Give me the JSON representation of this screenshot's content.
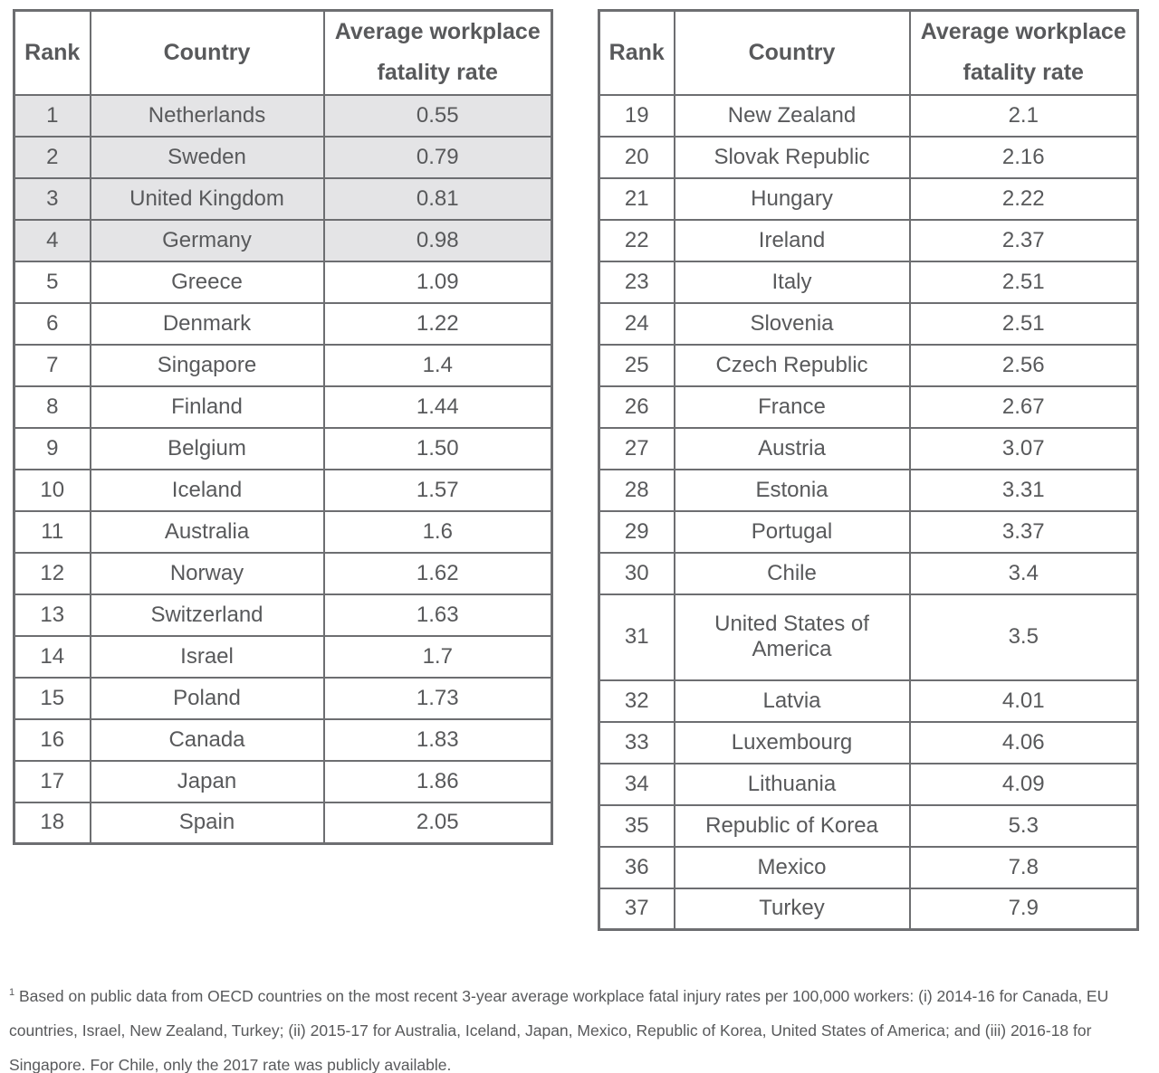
{
  "colors": {
    "border": "#6d6e71",
    "shaded_row_bg": "#e4e4e6",
    "text": "#58595b",
    "page_bg": "#ffffff"
  },
  "tables": [
    {
      "headers": {
        "rank": "Rank",
        "country": "Country",
        "rate": "Average workplace fatality rate"
      },
      "rows": [
        {
          "rank": "1",
          "country": "Netherlands",
          "rate": "0.55",
          "shaded": true
        },
        {
          "rank": "2",
          "country": "Sweden",
          "rate": "0.79",
          "shaded": true
        },
        {
          "rank": "3",
          "country": "United Kingdom",
          "rate": "0.81",
          "shaded": true
        },
        {
          "rank": "4",
          "country": "Germany",
          "rate": "0.98",
          "shaded": true
        },
        {
          "rank": "5",
          "country": "Greece",
          "rate": "1.09",
          "shaded": false
        },
        {
          "rank": "6",
          "country": "Denmark",
          "rate": "1.22",
          "shaded": false
        },
        {
          "rank": "7",
          "country": "Singapore",
          "rate": "1.4",
          "shaded": false
        },
        {
          "rank": "8",
          "country": "Finland",
          "rate": "1.44",
          "shaded": false
        },
        {
          "rank": "9",
          "country": "Belgium",
          "rate": "1.50",
          "shaded": false
        },
        {
          "rank": "10",
          "country": "Iceland",
          "rate": "1.57",
          "shaded": false
        },
        {
          "rank": "11",
          "country": "Australia",
          "rate": "1.6",
          "shaded": false
        },
        {
          "rank": "12",
          "country": "Norway",
          "rate": "1.62",
          "shaded": false
        },
        {
          "rank": "13",
          "country": "Switzerland",
          "rate": "1.63",
          "shaded": false
        },
        {
          "rank": "14",
          "country": "Israel",
          "rate": "1.7",
          "shaded": false
        },
        {
          "rank": "15",
          "country": "Poland",
          "rate": "1.73",
          "shaded": false
        },
        {
          "rank": "16",
          "country": "Canada",
          "rate": "1.83",
          "shaded": false
        },
        {
          "rank": "17",
          "country": "Japan",
          "rate": "1.86",
          "shaded": false
        },
        {
          "rank": "18",
          "country": "Spain",
          "rate": "2.05",
          "shaded": false
        }
      ]
    },
    {
      "headers": {
        "rank": "Rank",
        "country": "Country",
        "rate": "Average workplace fatality rate"
      },
      "rows": [
        {
          "rank": "19",
          "country": "New Zealand",
          "rate": "2.1",
          "shaded": false
        },
        {
          "rank": "20",
          "country": "Slovak Republic",
          "rate": "2.16",
          "shaded": false
        },
        {
          "rank": "21",
          "country": "Hungary",
          "rate": "2.22",
          "shaded": false
        },
        {
          "rank": "22",
          "country": "Ireland",
          "rate": "2.37",
          "shaded": false
        },
        {
          "rank": "23",
          "country": "Italy",
          "rate": "2.51",
          "shaded": false
        },
        {
          "rank": "24",
          "country": "Slovenia",
          "rate": "2.51",
          "shaded": false
        },
        {
          "rank": "25",
          "country": "Czech Republic",
          "rate": "2.56",
          "shaded": false
        },
        {
          "rank": "26",
          "country": "France",
          "rate": "2.67",
          "shaded": false
        },
        {
          "rank": "27",
          "country": "Austria",
          "rate": "3.07",
          "shaded": false
        },
        {
          "rank": "28",
          "country": "Estonia",
          "rate": "3.31",
          "shaded": false
        },
        {
          "rank": "29",
          "country": "Portugal",
          "rate": "3.37",
          "shaded": false
        },
        {
          "rank": "30",
          "country": "Chile",
          "rate": "3.4",
          "shaded": false
        },
        {
          "rank": "31",
          "country": "United States of America",
          "rate": "3.5",
          "shaded": false,
          "tall": true
        },
        {
          "rank": "32",
          "country": "Latvia",
          "rate": "4.01",
          "shaded": false
        },
        {
          "rank": "33",
          "country": "Luxembourg",
          "rate": "4.06",
          "shaded": false
        },
        {
          "rank": "34",
          "country": "Lithuania",
          "rate": "4.09",
          "shaded": false
        },
        {
          "rank": "35",
          "country": "Republic of Korea",
          "rate": "5.3",
          "shaded": false
        },
        {
          "rank": "36",
          "country": "Mexico",
          "rate": "7.8",
          "shaded": false
        },
        {
          "rank": "37",
          "country": "Turkey",
          "rate": "7.9",
          "shaded": false
        }
      ]
    }
  ],
  "footnote": {
    "marker": "1",
    "text": "Based on public data from OECD countries on the most recent 3-year average workplace fatal injury rates per 100,000 workers: (i) 2014-16 for Canada, EU countries, Israel, New Zealand, Turkey; (ii) 2015-17 for Australia, Iceland, Japan, Mexico, Republic of Korea, United States of America; and (iii) 2016-18 for Singapore. For Chile, only the 2017 rate was publicly available."
  },
  "chart_data": {
    "type": "table",
    "columns": [
      "Rank",
      "Country",
      "Average workplace fatality rate"
    ],
    "rows": [
      [
        "1",
        "Netherlands",
        "0.55"
      ],
      [
        "2",
        "Sweden",
        "0.79"
      ],
      [
        "3",
        "United Kingdom",
        "0.81"
      ],
      [
        "4",
        "Germany",
        "0.98"
      ],
      [
        "5",
        "Greece",
        "1.09"
      ],
      [
        "6",
        "Denmark",
        "1.22"
      ],
      [
        "7",
        "Singapore",
        "1.4"
      ],
      [
        "8",
        "Finland",
        "1.44"
      ],
      [
        "9",
        "Belgium",
        "1.50"
      ],
      [
        "10",
        "Iceland",
        "1.57"
      ],
      [
        "11",
        "Australia",
        "1.6"
      ],
      [
        "12",
        "Norway",
        "1.62"
      ],
      [
        "13",
        "Switzerland",
        "1.63"
      ],
      [
        "14",
        "Israel",
        "1.7"
      ],
      [
        "15",
        "Poland",
        "1.73"
      ],
      [
        "16",
        "Canada",
        "1.83"
      ],
      [
        "17",
        "Japan",
        "1.86"
      ],
      [
        "18",
        "Spain",
        "2.05"
      ],
      [
        "19",
        "New Zealand",
        "2.1"
      ],
      [
        "20",
        "Slovak Republic",
        "2.16"
      ],
      [
        "21",
        "Hungary",
        "2.22"
      ],
      [
        "22",
        "Ireland",
        "2.37"
      ],
      [
        "23",
        "Italy",
        "2.51"
      ],
      [
        "24",
        "Slovenia",
        "2.51"
      ],
      [
        "25",
        "Czech Republic",
        "2.56"
      ],
      [
        "26",
        "France",
        "2.67"
      ],
      [
        "27",
        "Austria",
        "3.07"
      ],
      [
        "28",
        "Estonia",
        "3.31"
      ],
      [
        "29",
        "Portugal",
        "3.37"
      ],
      [
        "30",
        "Chile",
        "3.4"
      ],
      [
        "31",
        "United States of America",
        "3.5"
      ],
      [
        "32",
        "Latvia",
        "4.01"
      ],
      [
        "33",
        "Luxembourg",
        "4.06"
      ],
      [
        "34",
        "Lithuania",
        "4.09"
      ],
      [
        "35",
        "Republic of Korea",
        "5.3"
      ],
      [
        "36",
        "Mexico",
        "7.8"
      ],
      [
        "37",
        "Turkey",
        "7.9"
      ]
    ]
  }
}
